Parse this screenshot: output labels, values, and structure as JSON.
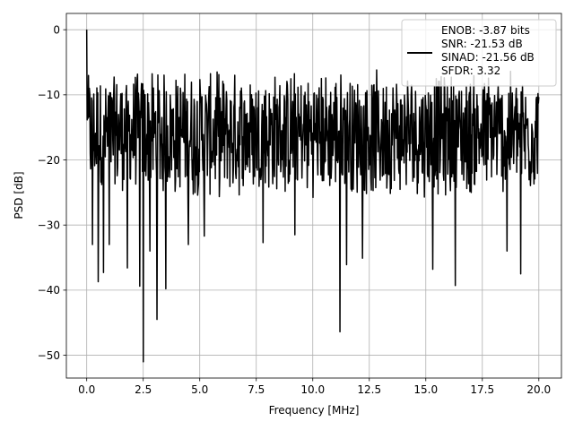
{
  "chart_data": {
    "type": "line",
    "title": "",
    "xlabel": "Frequency [MHz]",
    "ylabel": "PSD [dB]",
    "xlim": [
      -0.9,
      21.0
    ],
    "ylim": [
      -53.5,
      2.5
    ],
    "xticks": [
      0.0,
      2.5,
      5.0,
      7.5,
      10.0,
      12.5,
      15.0,
      17.5,
      20.0
    ],
    "xtick_labels": [
      "0.0",
      "2.5",
      "5.0",
      "7.5",
      "10.0",
      "12.5",
      "15.0",
      "17.5",
      "20.0"
    ],
    "yticks": [
      0,
      -10,
      -20,
      -30,
      -40,
      -50
    ],
    "ytick_labels": [
      "0",
      "−10",
      "−20",
      "−30",
      "−40",
      "−50"
    ],
    "grid": true,
    "legend_position": "top-right",
    "line_color": "#000000",
    "series": [
      {
        "name": "ENOB: -3.87 bits\nSNR: -21.53 dB\nSINAD: -21.56 dB\nSFDR: 3.32",
        "x_range": [
          0.0,
          20.0
        ],
        "num_points": 1024,
        "spike_start": {
          "x": 0.0,
          "y": 0.0
        },
        "envelope_upper": -6,
        "envelope_lower": -26,
        "dips": [
          {
            "x": 0.25,
            "y": -33
          },
          {
            "x": 0.5,
            "y": -38.7
          },
          {
            "x": 0.75,
            "y": -37.3
          },
          {
            "x": 1.0,
            "y": -33
          },
          {
            "x": 1.8,
            "y": -36.6
          },
          {
            "x": 2.35,
            "y": -39.4
          },
          {
            "x": 2.5,
            "y": -51
          },
          {
            "x": 2.8,
            "y": -34
          },
          {
            "x": 3.1,
            "y": -44.5
          },
          {
            "x": 3.5,
            "y": -39.8
          },
          {
            "x": 4.5,
            "y": -33
          },
          {
            "x": 5.2,
            "y": -31.7
          },
          {
            "x": 7.8,
            "y": -32.7
          },
          {
            "x": 9.2,
            "y": -31.5
          },
          {
            "x": 11.2,
            "y": -46.4
          },
          {
            "x": 11.5,
            "y": -36.1
          },
          {
            "x": 12.2,
            "y": -35.1
          },
          {
            "x": 15.3,
            "y": -36.8
          },
          {
            "x": 16.3,
            "y": -39.3
          },
          {
            "x": 18.6,
            "y": -34
          },
          {
            "x": 19.2,
            "y": -37.5
          }
        ]
      }
    ]
  }
}
